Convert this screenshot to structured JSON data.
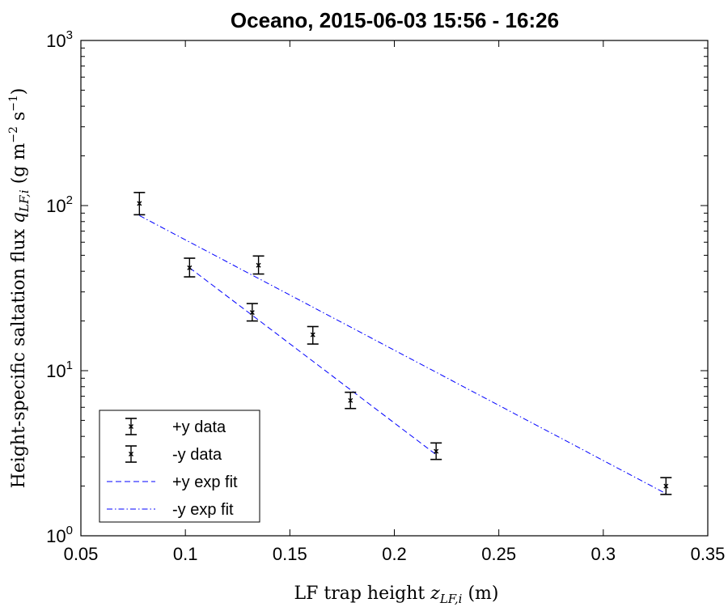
{
  "chart_data": {
    "type": "scatter",
    "title": "Oceano, 2015-06-03 15:56 - 16:26",
    "xlabel": "LF trap height z_{LF,i} (m)",
    "ylabel": "Height-specific saltation flux q_{LF,i} (g m^-2 s^-1)",
    "xlim": [
      0.05,
      0.35
    ],
    "ylim": [
      1,
      1000
    ],
    "yscale": "log",
    "x_ticks": [
      "0.05",
      "0.1",
      "0.15",
      "0.2",
      "0.25",
      "0.3",
      "0.35"
    ],
    "y_ticks": [
      {
        "base": "10",
        "exp": "0"
      },
      {
        "base": "10",
        "exp": "1"
      },
      {
        "base": "10",
        "exp": "2"
      },
      {
        "base": "10",
        "exp": "3"
      }
    ],
    "series": [
      {
        "name": "+y data",
        "style": "errorbar",
        "points": [
          {
            "x": 0.102,
            "y": 42,
            "err_low": 37,
            "err_high": 48
          },
          {
            "x": 0.132,
            "y": 22.5,
            "err_low": 20,
            "err_high": 25.5
          },
          {
            "x": 0.161,
            "y": 16.5,
            "err_low": 14.5,
            "err_high": 18.5
          },
          {
            "x": 0.179,
            "y": 6.6,
            "err_low": 5.9,
            "err_high": 7.4
          },
          {
            "x": 0.22,
            "y": 3.25,
            "err_low": 2.9,
            "err_high": 3.65
          }
        ]
      },
      {
        "name": "-y data",
        "style": "errorbar",
        "points": [
          {
            "x": 0.078,
            "y": 103,
            "err_low": 88,
            "err_high": 120
          },
          {
            "x": 0.135,
            "y": 43.5,
            "err_low": 38.5,
            "err_high": 49.5
          },
          {
            "x": 0.33,
            "y": 2.0,
            "err_low": 1.78,
            "err_high": 2.25
          }
        ]
      },
      {
        "name": "+y exp fit",
        "style": "dashed",
        "color": "#0000ff",
        "points": [
          {
            "x": 0.102,
            "y": 42
          },
          {
            "x": 0.22,
            "y": 3.1
          }
        ]
      },
      {
        "name": "-y exp fit",
        "style": "dashdot",
        "color": "#0000ff",
        "points": [
          {
            "x": 0.078,
            "y": 87
          },
          {
            "x": 0.33,
            "y": 1.8
          }
        ]
      }
    ],
    "legend": {
      "position": "bottom-left"
    },
    "grid": false
  }
}
